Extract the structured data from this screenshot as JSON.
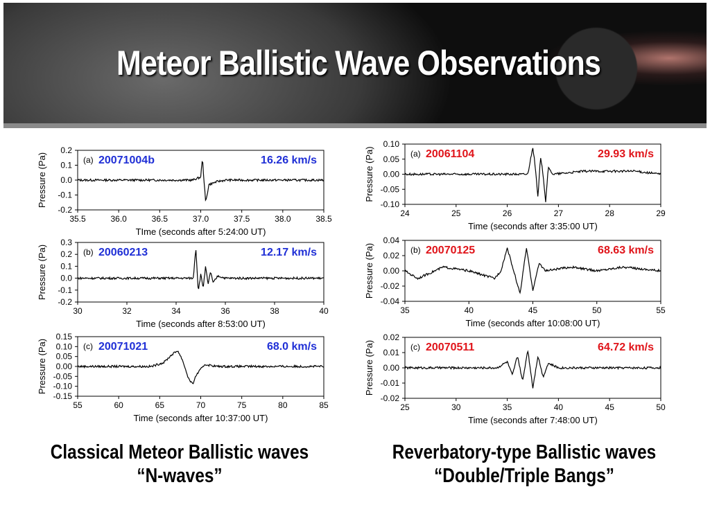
{
  "slide": {
    "title": "Meteor Ballistic Wave Observations",
    "caption_left": {
      "line1": "Classical Meteor Ballistic waves",
      "line2": "“N-waves”"
    },
    "caption_right": {
      "line1": "Reverbatory-type Ballistic waves",
      "line2": "“Double/Triple Bangs”"
    }
  },
  "chart_data": [
    {
      "type": "line",
      "panel": "(a)",
      "event": "20071004b",
      "speed": "16.26 km/s",
      "label_color": "#1f2fd6",
      "xlabel": "TIme (seconds after 5:24:00 UT)",
      "ylabel": "Pressure (Pa)",
      "xlim": [
        35.5,
        38.5
      ],
      "ylim": [
        -0.2,
        0.2
      ],
      "xticks": [
        "35.5",
        "36.0",
        "36.5",
        "37.0",
        "37.5",
        "38.0",
        "38.5"
      ],
      "yticks": [
        "0.2",
        "0.1",
        "0.0",
        "-0.1",
        "-0.2"
      ],
      "series": [
        {
          "x": [
            35.5,
            36.0,
            36.5,
            36.9,
            37.0,
            37.02,
            37.06,
            37.1,
            37.15,
            37.2,
            37.3,
            37.5,
            38.0,
            38.5
          ],
          "y": [
            0.0,
            0.0,
            0.0,
            0.0,
            0.02,
            0.15,
            -0.15,
            -0.03,
            -0.02,
            -0.01,
            0.0,
            0.0,
            0.0,
            0.0
          ]
        }
      ]
    },
    {
      "type": "line",
      "panel": "(b)",
      "event": "20060213",
      "speed": "12.17 km/s",
      "label_color": "#1f2fd6",
      "xlabel": "Time (seconds after 8:53:00 UT)",
      "ylabel": "Pressure (Pa)",
      "xlim": [
        30,
        40
      ],
      "ylim": [
        -0.2,
        0.3
      ],
      "xticks": [
        "30",
        "32",
        "34",
        "36",
        "38",
        "40"
      ],
      "yticks": [
        "0.3",
        "0.2",
        "0.1",
        "0.0",
        "-0.1",
        "-0.2"
      ],
      "series": [
        {
          "x": [
            30,
            32,
            34,
            34.7,
            34.8,
            34.9,
            35.0,
            35.1,
            35.2,
            35.3,
            35.4,
            35.5,
            35.7,
            36,
            38,
            40
          ],
          "y": [
            0.0,
            0.0,
            0.0,
            0.0,
            0.26,
            -0.11,
            0.03,
            -0.08,
            0.1,
            -0.06,
            0.06,
            -0.04,
            0.02,
            0.0,
            0.0,
            0.0
          ]
        }
      ]
    },
    {
      "type": "line",
      "panel": "(c)",
      "event": "20071021",
      "speed": "68.0 km/s",
      "label_color": "#1f2fd6",
      "xlabel": "Time (seconds after 10:37:00 UT)",
      "ylabel": "Pressure (Pa)",
      "xlim": [
        55,
        85
      ],
      "ylim": [
        -0.15,
        0.15
      ],
      "xticks": [
        "55",
        "60",
        "65",
        "70",
        "75",
        "80",
        "85"
      ],
      "yticks": [
        "0.15",
        "0.10",
        "0.05",
        "0.00",
        "-0.05",
        "-0.10",
        "-0.15"
      ],
      "series": [
        {
          "x": [
            55,
            60,
            64,
            65.5,
            66.5,
            67.2,
            67.8,
            68.5,
            69.0,
            69.5,
            70.5,
            72,
            75,
            80,
            85
          ],
          "y": [
            0.0,
            0.0,
            0.0,
            0.02,
            0.06,
            0.08,
            0.03,
            -0.06,
            -0.09,
            -0.04,
            0.01,
            0.0,
            0.0,
            0.0,
            0.0
          ]
        }
      ]
    },
    {
      "type": "line",
      "panel": "(a)",
      "event": "20061104",
      "speed": "29.93 km/s",
      "label_color": "#e0141a",
      "xlabel": "Time (seconds after 3:35:00 UT)",
      "ylabel": "Pressure (Pa)",
      "xlim": [
        24,
        29
      ],
      "ylim": [
        -0.1,
        0.1
      ],
      "xticks": [
        "24",
        "25",
        "26",
        "27",
        "28",
        "29"
      ],
      "yticks": [
        "0.10",
        "0.05",
        "0.00",
        "-0.05",
        "-0.10"
      ],
      "series": [
        {
          "x": [
            24,
            25,
            26,
            26.4,
            26.5,
            26.55,
            26.6,
            26.65,
            26.7,
            26.75,
            26.8,
            26.9,
            27.5,
            28,
            28.5,
            29
          ],
          "y": [
            0.0,
            0.0,
            0.0,
            0.0,
            0.09,
            0.02,
            -0.08,
            0.06,
            0.0,
            -0.09,
            0.02,
            0.0,
            0.01,
            0.01,
            0.01,
            0.0
          ]
        }
      ]
    },
    {
      "type": "line",
      "panel": "(b)",
      "event": "20070125",
      "speed": "68.63 km/s",
      "label_color": "#e0141a",
      "xlabel": "Time (seconds after 10:08:00 UT)",
      "ylabel": "Pressure (Pa)",
      "xlim": [
        35,
        55
      ],
      "ylim": [
        -0.04,
        0.04
      ],
      "xticks": [
        "35",
        "40",
        "45",
        "50",
        "55"
      ],
      "yticks": [
        "0.04",
        "0.02",
        "0.00",
        "-0.02",
        "-0.04"
      ],
      "series": [
        {
          "x": [
            35,
            36,
            38,
            40,
            42,
            42.5,
            43,
            43.5,
            44,
            44.5,
            45,
            45.5,
            46,
            48,
            50,
            52,
            55
          ],
          "y": [
            0.0,
            -0.01,
            0.005,
            0.0,
            -0.01,
            0.0,
            0.03,
            0.0,
            -0.03,
            0.03,
            -0.025,
            0.01,
            0.0,
            0.005,
            0.0,
            0.005,
            0.0
          ]
        }
      ]
    },
    {
      "type": "line",
      "panel": "(c)",
      "event": "20070511",
      "speed": "64.72 km/s",
      "label_color": "#e0141a",
      "xlabel": "Time (seconds after 7:48:00 UT)",
      "ylabel": "Pressure (Pa)",
      "xlim": [
        25,
        50
      ],
      "ylim": [
        -0.02,
        0.02
      ],
      "xticks": [
        "25",
        "30",
        "35",
        "40",
        "45",
        "50"
      ],
      "yticks": [
        "0.02",
        "0.01",
        "0.00",
        "-0.01",
        "-0.02"
      ],
      "series": [
        {
          "x": [
            25,
            30,
            34,
            35,
            35.5,
            36,
            36.5,
            37,
            37.5,
            38,
            38.5,
            39,
            40,
            45,
            50
          ],
          "y": [
            0.0,
            0.0,
            0.0,
            0.004,
            -0.005,
            0.008,
            -0.009,
            0.012,
            -0.013,
            0.008,
            -0.006,
            0.003,
            0.0,
            0.0,
            0.0
          ]
        }
      ]
    }
  ]
}
